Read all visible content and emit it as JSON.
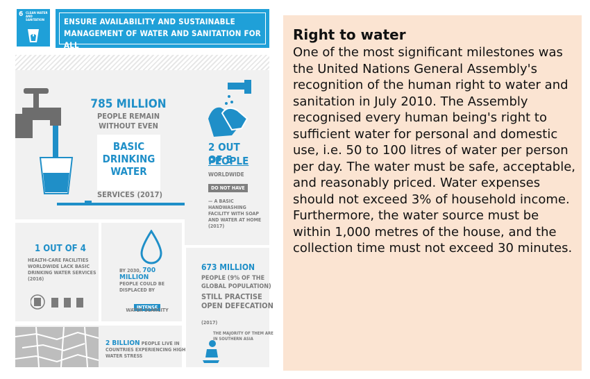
{
  "infographic": {
    "sdg": {
      "number": "6",
      "label": "CLEAN WATER AND SANITATION",
      "title": "ENSURE AVAILABILITY AND SUSTAINABLE MANAGEMENT OF WATER AND SANITATION FOR ALL"
    },
    "drinking": {
      "figure": "785 MILLION",
      "line1": "PEOPLE REMAIN WITHOUT EVEN",
      "highlight": "BASIC DRINKING WATER",
      "services": "SERVICES (2017)"
    },
    "handwashing": {
      "figure": "2 OUT OF 5",
      "people": "PEOPLE",
      "worldwide": "WORLDWIDE",
      "badge": "DO NOT HAVE",
      "detail": "— A BASIC HANDWASHING FACILITY WITH SOAP AND WATER AT HOME (2017)"
    },
    "healthcare": {
      "figure": "1 OUT OF 4",
      "detail": "HEALTH-CARE FACILITIES WORLDWIDE LACK BASIC DRINKING WATER SERVICES (2016)"
    },
    "displaced": {
      "pre": "BY 2030,",
      "figure": "700 MILLION",
      "detail": "PEOPLE COULD BE DISPLACED BY",
      "badge": "INTENSE",
      "post": "WATER SCARCITY"
    },
    "defecation": {
      "figure": "673 MILLION",
      "detail": "PEOPLE (9% OF THE GLOBAL POPULATION)",
      "detail2": "STILL PRACTISE OPEN DEFECATION",
      "year": "(2017)",
      "majority": "THE MAJORITY OF THEM ARE IN SOUTHERN ASIA"
    },
    "stress": {
      "figure": "2 BILLION",
      "detail": "PEOPLE LIVE IN COUNTRIES EXPERIENCING HIGH WATER STRESS"
    },
    "colors": {
      "accent": "#1f8fc8",
      "panel": "#f1f1f1",
      "text_gray": "#7b7b7b",
      "side_panel": "#fbe4d2"
    }
  },
  "right_to_water": {
    "title": "Right to water",
    "body": "One of the most significant milestones was the United Nations General Assembly's recognition of the human right to water and sanitation in July 2010. The Assembly recognised every human being's right to sufficient water for personal and domestic use, i.e. 50 to 100 litres of water per person per day. The water must be safe, acceptable, and reasonably priced. Water expenses should not exceed 3% of household income. Furthermore, the water source must be within 1,000 metres of the house, and the collection time must not exceed 30 minutes."
  }
}
